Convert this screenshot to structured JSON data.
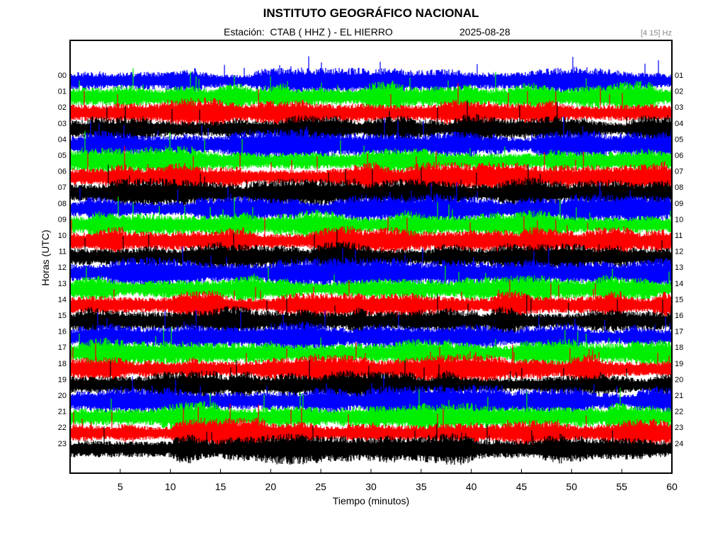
{
  "title": "INSTITUTO GEOGRÁFICO NACIONAL",
  "station_line": "Estación:  CTAB ( HHZ ) - EL HIERRO",
  "date": "2025-08-28",
  "band": "[4 15] Hz",
  "chart_data": {
    "type": "line",
    "title": "INSTITUTO GEOGRÁFICO NACIONAL",
    "xlabel": "Tiempo (minutos)",
    "ylabel": "Horas (UTC)",
    "xlim": [
      0,
      60
    ],
    "x_ticks": [
      5,
      10,
      15,
      20,
      25,
      30,
      35,
      40,
      45,
      50,
      55,
      60
    ],
    "left_ticks": [
      "00",
      "01",
      "02",
      "03",
      "04",
      "05",
      "06",
      "07",
      "08",
      "09",
      "10",
      "11",
      "12",
      "13",
      "14",
      "15",
      "16",
      "17",
      "18",
      "19",
      "20",
      "21",
      "22",
      "23"
    ],
    "right_ticks": [
      "01",
      "02",
      "03",
      "04",
      "05",
      "06",
      "07",
      "08",
      "09",
      "10",
      "11",
      "12",
      "13",
      "14",
      "15",
      "16",
      "17",
      "18",
      "19",
      "20",
      "21",
      "22",
      "23",
      "24"
    ],
    "trace_colors": [
      "#0000ff",
      "#00ee00",
      "#ff0000",
      "#000000"
    ],
    "grid": false,
    "legend": "none"
  }
}
